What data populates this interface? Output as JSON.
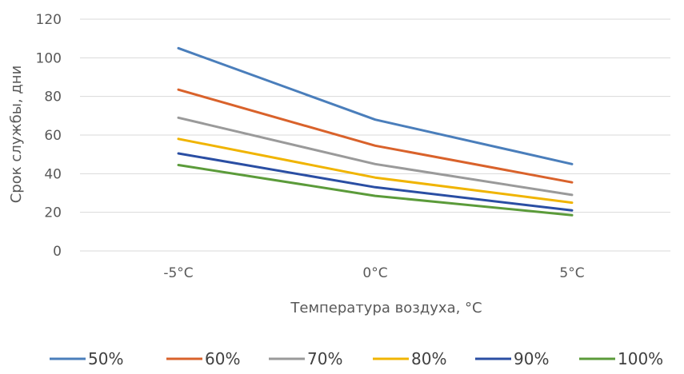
{
  "chart_data": {
    "type": "line",
    "categories": [
      "-5°C",
      "0°C",
      "5°C"
    ],
    "xlabel": "Температура воздуха, °C",
    "ylabel": "Срок службы, дни",
    "ylim": [
      0,
      120
    ],
    "yticks": [
      0,
      20,
      40,
      60,
      80,
      100,
      120
    ],
    "grid": true,
    "legend_position": "bottom",
    "series": [
      {
        "name": "50%",
        "values": [
          105,
          68,
          45
        ],
        "color": "#4a7ebb"
      },
      {
        "name": "60%",
        "values": [
          83.5,
          54.5,
          35.5
        ],
        "color": "#d9622b"
      },
      {
        "name": "70%",
        "values": [
          69,
          45,
          29
        ],
        "color": "#9a9a9a"
      },
      {
        "name": "80%",
        "values": [
          58,
          38,
          25
        ],
        "color": "#f0b400"
      },
      {
        "name": "90%",
        "values": [
          50.5,
          33,
          21
        ],
        "color": "#2a4ea3"
      },
      {
        "name": "100%",
        "values": [
          44.5,
          28.5,
          18.5
        ],
        "color": "#5b9b3a"
      }
    ]
  }
}
